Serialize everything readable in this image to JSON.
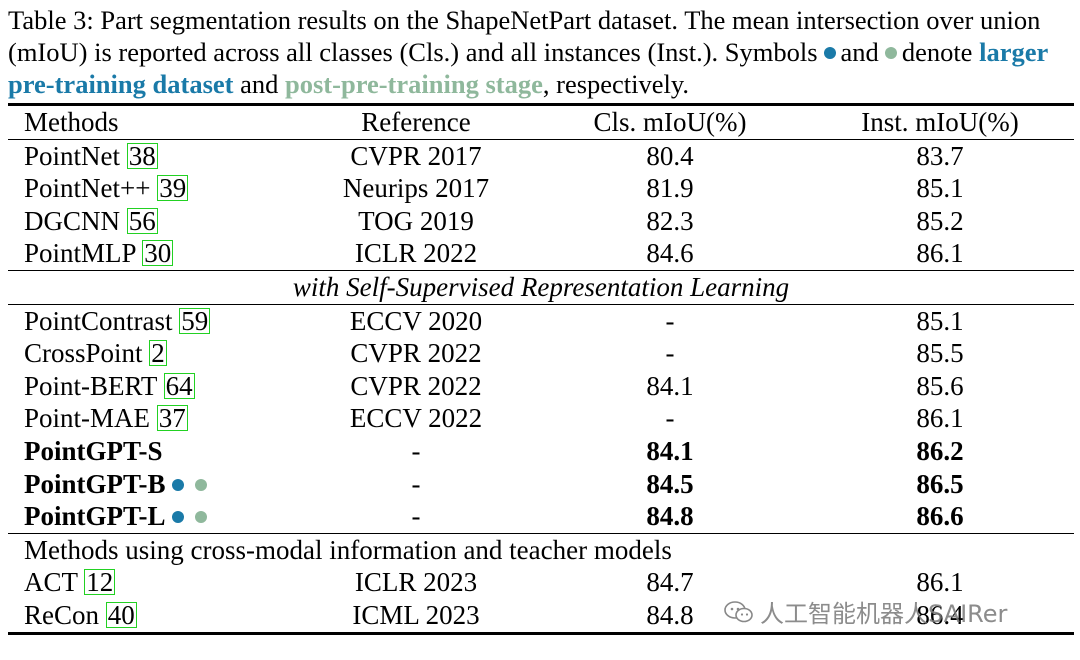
{
  "caption": {
    "part1": "Table 3: Part segmentation results on the ShapeNetPart dataset. The mean intersection over union (mIoU) is reported across all classes (Cls.) and all instances (Inst.). Symbols",
    "and_word": "and",
    "denote_word": "denote",
    "blue_phrase": "larger pre-training dataset",
    "and_word2": "and",
    "green_phrase": "post-pre-training stage",
    "tail": ", respectively."
  },
  "colors": {
    "blue": "#1a7aa8",
    "green": "#8fb89c",
    "cite_border": "#22d122"
  },
  "header": {
    "methods": "Methods",
    "reference": "Reference",
    "cls": "Cls. mIoU(%)",
    "inst": "Inst. mIoU(%)"
  },
  "group1": [
    {
      "name": "PointNet",
      "cite": "38",
      "ref": "CVPR 2017",
      "cls": "80.4",
      "inst": "83.7"
    },
    {
      "name": "PointNet++",
      "cite": "39",
      "ref": "Neurips 2017",
      "cls": "81.9",
      "inst": "85.1"
    },
    {
      "name": "DGCNN",
      "cite": "56",
      "ref": "TOG 2019",
      "cls": "82.3",
      "inst": "85.2"
    },
    {
      "name": "PointMLP",
      "cite": "30",
      "ref": "ICLR 2022",
      "cls": "84.6",
      "inst": "86.1"
    }
  ],
  "section2_title": "with Self-Supervised Representation Learning",
  "group2": [
    {
      "name": "PointContrast",
      "cite": "59",
      "ref": "ECCV 2020",
      "cls": "-",
      "inst": "85.1"
    },
    {
      "name": "CrossPoint",
      "cite": "2",
      "ref": "CVPR 2022",
      "cls": "-",
      "inst": "85.5"
    },
    {
      "name": "Point-BERT",
      "cite": "64",
      "ref": "CVPR 2022",
      "cls": "84.1",
      "inst": "85.6"
    },
    {
      "name": "Point-MAE",
      "cite": "37",
      "ref": "ECCV 2022",
      "cls": "-",
      "inst": "86.1"
    }
  ],
  "ours": [
    {
      "name": "PointGPT-S",
      "ref": "-",
      "cls": "84.1",
      "inst": "86.2"
    },
    {
      "name": "PointGPT-B",
      "ref": "-",
      "cls": "84.5",
      "inst": "86.5"
    },
    {
      "name": "PointGPT-L",
      "ref": "-",
      "cls": "84.8",
      "inst": "86.6"
    }
  ],
  "section3_title": "Methods using cross-modal information and teacher models",
  "group3": [
    {
      "name": "ACT",
      "cite": "12",
      "ref": "ICLR 2023",
      "cls": "84.7",
      "inst": "86.1"
    },
    {
      "name": "ReCon",
      "cite": "40",
      "ref": "ICML 2023",
      "cls": "84.8",
      "inst": "86.4"
    }
  ],
  "watermark": {
    "text": "人工智能机器人SAIRer",
    "icon": "wechat-icon"
  }
}
